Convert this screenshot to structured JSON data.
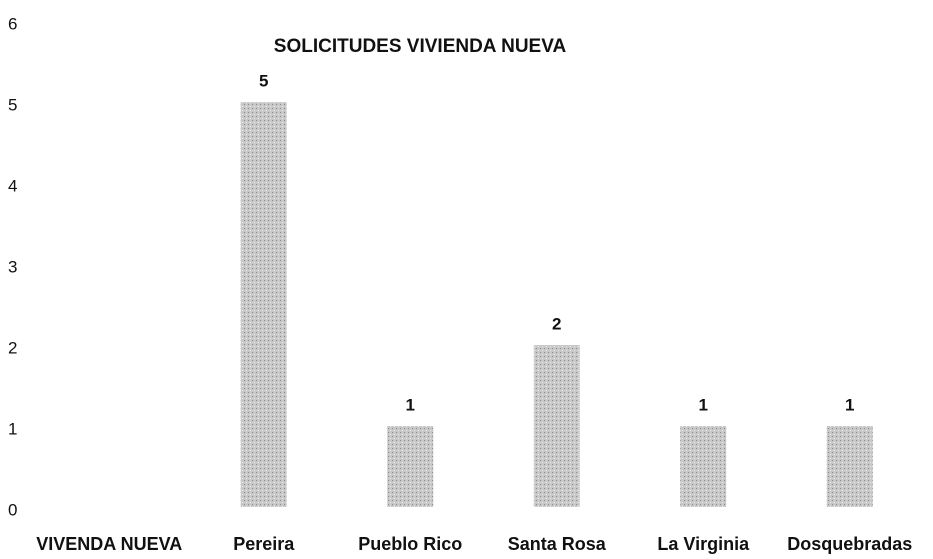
{
  "chart_data": {
    "type": "bar",
    "title": "SOLICITUDES  VIVIENDA NUEVA",
    "categories": [
      "VIVENDA NUEVA",
      "Pereira",
      "Pueblo Rico",
      "Santa Rosa",
      "La Virginia",
      "Dosquebradas"
    ],
    "values": [
      null,
      5,
      1,
      2,
      1,
      1
    ],
    "color": "#c4c4c4",
    "ylim": [
      0,
      6
    ],
    "yticks": [
      0,
      1,
      2,
      3,
      4,
      5,
      6
    ],
    "grid": false
  }
}
